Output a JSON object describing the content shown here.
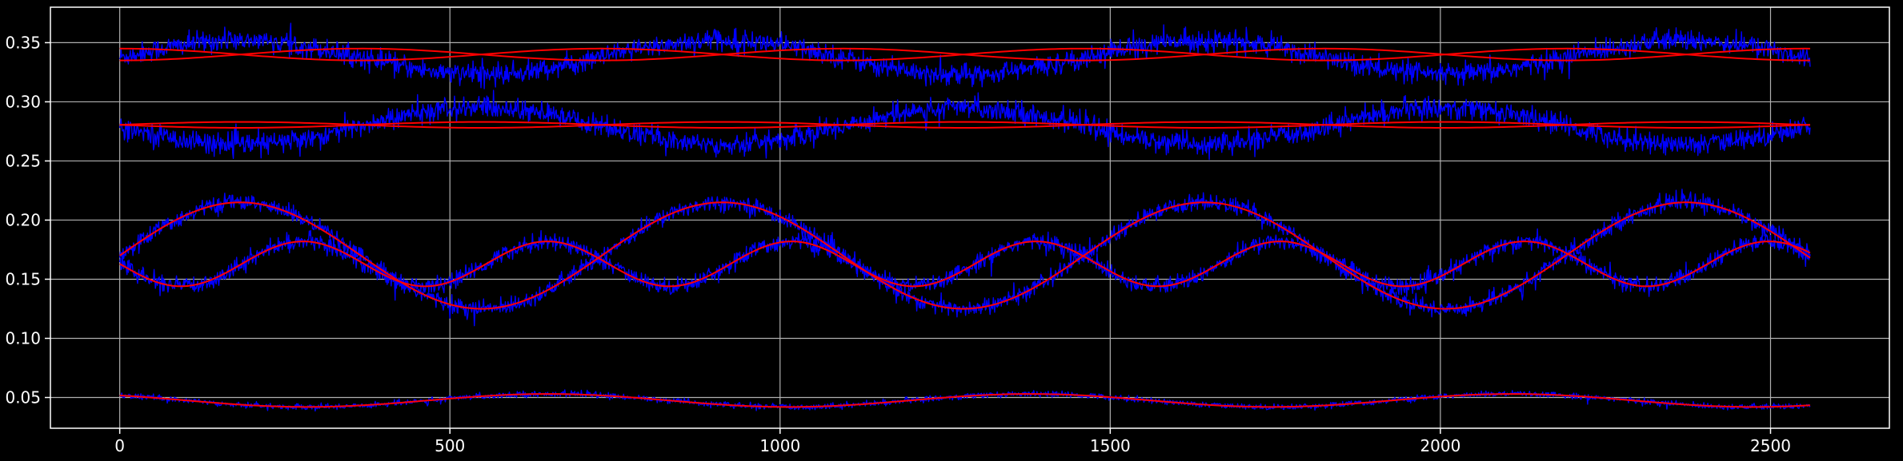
{
  "chart_data": {
    "type": "line",
    "title": "",
    "xlabel": "",
    "ylabel": "",
    "xlim": [
      -105,
      2680
    ],
    "ylim": [
      0.024,
      0.38
    ],
    "grid": true,
    "x_ticks": [
      0,
      500,
      1000,
      1500,
      2000,
      2500
    ],
    "x_tick_labels": [
      "0",
      "500",
      "1000",
      "1500",
      "2000",
      "2500"
    ],
    "y_ticks": [
      0.05,
      0.1,
      0.15,
      0.2,
      0.25,
      0.3,
      0.35
    ],
    "y_tick_labels": [
      "0.05",
      "0.10",
      "0.15",
      "0.20",
      "0.25",
      "0.30",
      "0.35"
    ],
    "x_range": [
      0,
      2560
    ],
    "colors": {
      "background": "#000000",
      "axes": "#ffffff",
      "grid": "#b0b0b0",
      "noisy": "#0000ff",
      "fit": "#ff0000"
    },
    "series": [
      {
        "role": "noisy",
        "mean": 0.3375,
        "amplitude": 0.0145,
        "period": 730,
        "phase_deg": 0,
        "noise": 0.0045
      },
      {
        "role": "fit",
        "mean": 0.34,
        "amplitude": 0.005,
        "period": 730,
        "phase_deg": -90
      },
      {
        "role": "fit",
        "mean": 0.34,
        "amplitude": 0.005,
        "period": 730,
        "phase_deg": 90
      },
      {
        "role": "noisy",
        "mean": 0.2795,
        "amplitude": 0.0155,
        "period": 730,
        "phase_deg": 180,
        "noise": 0.0045
      },
      {
        "role": "fit",
        "mean": 0.2805,
        "amplitude": 0.0025,
        "period": 730,
        "phase_deg": 0
      },
      {
        "role": "fit",
        "mean": 0.2805,
        "amplitude": 0.0025,
        "period": 730,
        "phase_deg": 180
      },
      {
        "role": "noisy",
        "mean": 0.17,
        "amplitude": 0.045,
        "period": 730,
        "phase_deg": 0,
        "noise": 0.0035
      },
      {
        "role": "fit",
        "mean": 0.17,
        "amplitude": 0.045,
        "period": 730,
        "phase_deg": 0
      },
      {
        "role": "noisy",
        "mean": 0.163,
        "amplitude": 0.019,
        "period": 370,
        "phase_deg": 180,
        "noise": 0.0035
      },
      {
        "role": "fit",
        "mean": 0.163,
        "amplitude": 0.019,
        "period": 370,
        "phase_deg": 180
      },
      {
        "role": "noisy",
        "mean": 0.0475,
        "amplitude": 0.0055,
        "period": 730,
        "phase_deg": 130,
        "noise": 0.0012
      },
      {
        "role": "fit",
        "mean": 0.0475,
        "amplitude": 0.0055,
        "period": 730,
        "phase_deg": 130
      }
    ]
  }
}
